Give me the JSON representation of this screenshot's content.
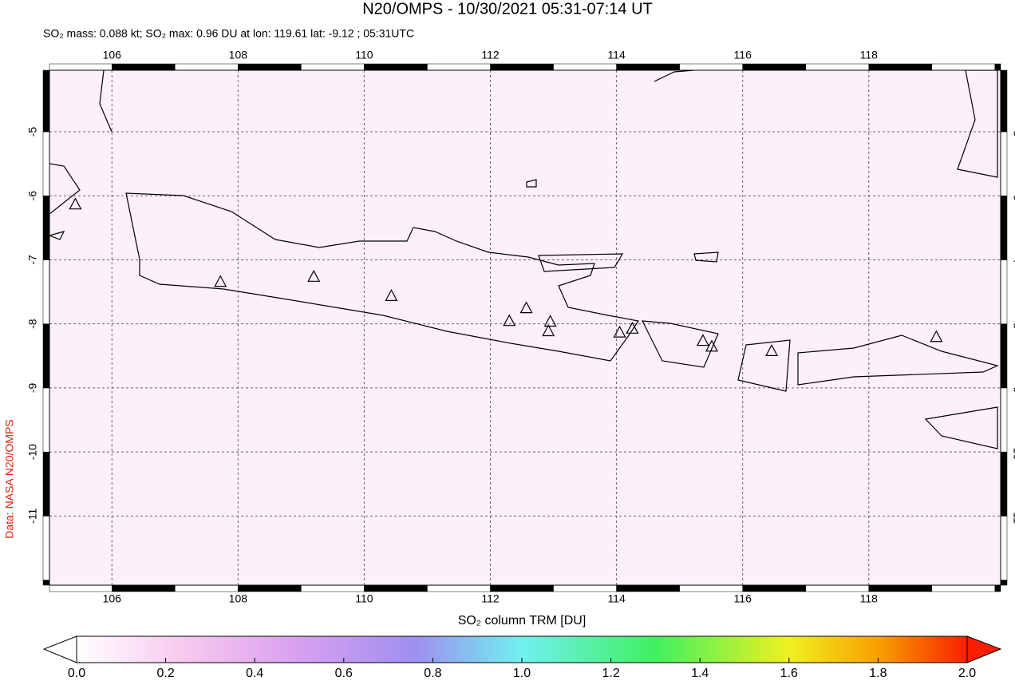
{
  "title": "N20/OMPS - 10/30/2021 05:31-07:14 UT",
  "subtitle": "SO₂ mass: 0.088 kt; SO₂ max: 0.96 DU at lon: 119.61 lat: -9.12 ; 05:31UTC",
  "credit": "Data: NASA N20/OMPS",
  "map": {
    "xlim": [
      105.01,
      120.09
    ],
    "ylim": [
      -12.08,
      -4.04
    ],
    "xticks": [
      106,
      108,
      110,
      112,
      114,
      116,
      118
    ],
    "yticks": [
      -5,
      -6,
      -7,
      -8,
      -9,
      -10,
      -11
    ],
    "grid": true,
    "volcanoes": {
      "lon": [
        105.42,
        107.72,
        109.2,
        110.43,
        112.3,
        112.57,
        112.95,
        112.92,
        114.05,
        114.25,
        115.37,
        115.51,
        116.46,
        119.07
      ],
      "lat": [
        -6.13,
        -7.34,
        -7.26,
        -7.56,
        -7.95,
        -7.75,
        -7.96,
        -8.11,
        -8.13,
        -8.07,
        -8.26,
        -8.35,
        -8.42,
        -8.2
      ]
    }
  },
  "colorbar": {
    "label": "SO₂ column TRM [DU]",
    "lim": [
      0,
      2
    ],
    "ticks": [
      {
        "value": 0,
        "label": "0.0"
      },
      {
        "value": 0.2,
        "label": "0.2"
      },
      {
        "value": 0.4,
        "label": "0.4"
      },
      {
        "value": 0.6,
        "label": "0.6"
      },
      {
        "value": 0.8,
        "label": "0.8"
      },
      {
        "value": 1,
        "label": "1.0"
      },
      {
        "value": 1.2,
        "label": "1.2"
      },
      {
        "value": 1.4,
        "label": "1.4"
      },
      {
        "value": 1.6,
        "label": "1.6"
      },
      {
        "value": 1.8,
        "label": "1.8"
      },
      {
        "value": 2,
        "label": "2.0"
      }
    ]
  }
}
